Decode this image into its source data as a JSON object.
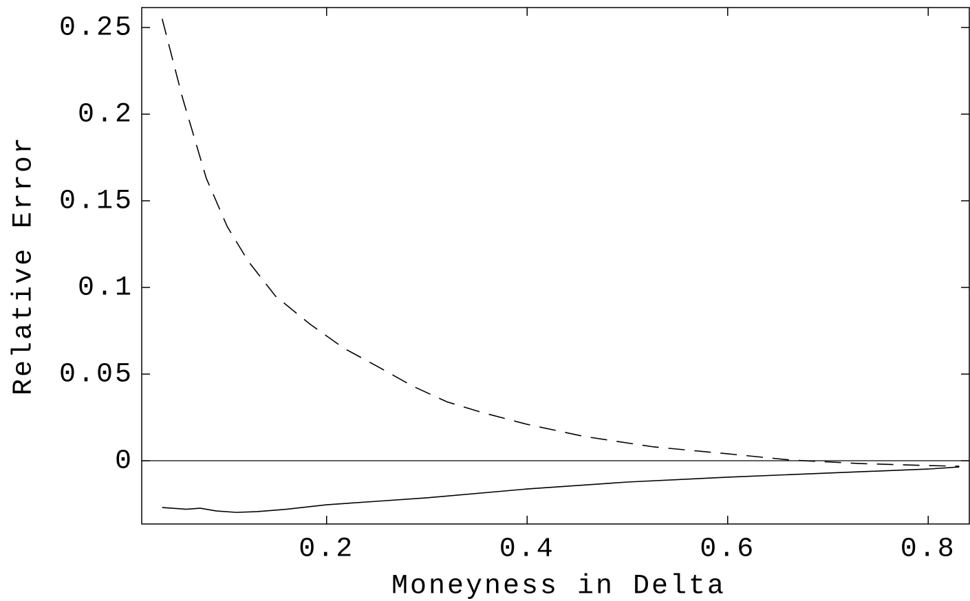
{
  "chart_data": {
    "type": "line",
    "x_label": "Moneyness in Delta",
    "y_label": "Relative Error",
    "xlim": [
      0.0156,
      0.841
    ],
    "ylim": [
      -0.0365,
      0.2615
    ],
    "xticks": [
      0.2,
      0.4,
      0.6,
      0.8
    ],
    "yticks": [
      0,
      0.05,
      0.1,
      0.15,
      0.2,
      0.25
    ],
    "series": [
      {
        "color": "#000000",
        "dashed": true,
        "x": [
          0.036,
          0.056,
          0.08,
          0.101,
          0.122,
          0.149,
          0.183,
          0.217,
          0.252,
          0.286,
          0.32,
          0.354,
          0.4,
          0.457,
          0.526,
          0.6,
          0.663,
          0.731,
          0.8,
          0.831
        ],
        "values": [
          0.255,
          0.21,
          0.163,
          0.135,
          0.115,
          0.095,
          0.079,
          0.065,
          0.054,
          0.043,
          0.034,
          0.028,
          0.021,
          0.014,
          0.008,
          0.004,
          0.0004,
          -0.0016,
          -0.0028,
          -0.0032
        ]
      },
      {
        "color": "#000000",
        "dashed": false,
        "x": [
          0.036,
          0.046,
          0.06,
          0.074,
          0.09,
          0.11,
          0.13,
          0.16,
          0.2,
          0.25,
          0.3,
          0.4,
          0.5,
          0.6,
          0.7,
          0.8,
          0.831
        ],
        "values": [
          -0.027,
          -0.0274,
          -0.028,
          -0.0274,
          -0.029,
          -0.0298,
          -0.0294,
          -0.028,
          -0.0254,
          -0.0234,
          -0.0214,
          -0.0163,
          -0.0123,
          -0.0095,
          -0.0071,
          -0.0048,
          -0.0036
        ]
      }
    ]
  }
}
